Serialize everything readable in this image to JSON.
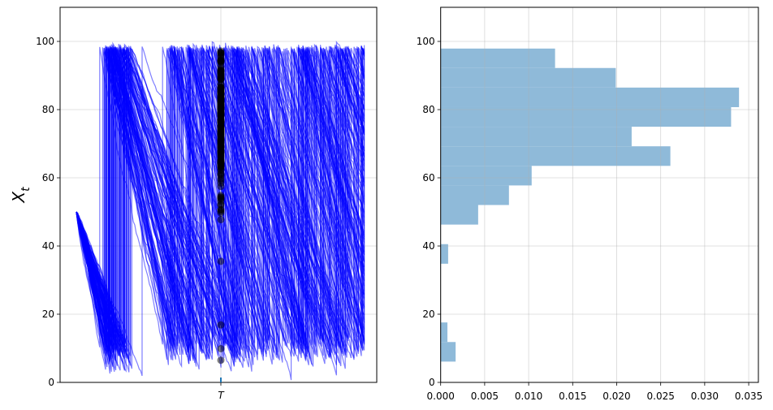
{
  "chart_data": [
    {
      "type": "line",
      "description_of_marks": "simulated sample paths with terminal values marked at T",
      "ylabel": "X_t",
      "ylim": [
        0,
        110
      ],
      "yticks": [
        0,
        20,
        40,
        60,
        80,
        100
      ],
      "xticks": [
        "T"
      ],
      "grid": true,
      "line_color": "#0000ff",
      "marker_color": "#000000",
      "initial_value": 50,
      "reset_level": 98,
      "lower_threshold": 10
    },
    {
      "type": "bar",
      "orientation": "horizontal",
      "ylim": [
        0,
        110
      ],
      "xlim": [
        0,
        0.0361
      ],
      "yticks": [
        0,
        20,
        40,
        60,
        80,
        100
      ],
      "xticks": [
        "0.000",
        "0.005",
        "0.010",
        "0.015",
        "0.020",
        "0.025",
        "0.030",
        "0.035"
      ],
      "grid": true,
      "bar_color": "#8fbad9",
      "bin_edges": [
        6.1,
        11.84,
        17.58,
        23.32,
        29.06,
        34.8,
        40.54,
        46.28,
        52.02,
        57.76,
        63.5,
        69.24,
        74.98,
        80.72,
        86.46,
        92.2,
        97.9
      ],
      "density": [
        0.0017,
        0.00077,
        0,
        0,
        0,
        0.00085,
        0,
        0.00426,
        0.00776,
        0.01034,
        0.0261,
        0.0217,
        0.033,
        0.0339,
        0.0199,
        0.013
      ]
    }
  ]
}
